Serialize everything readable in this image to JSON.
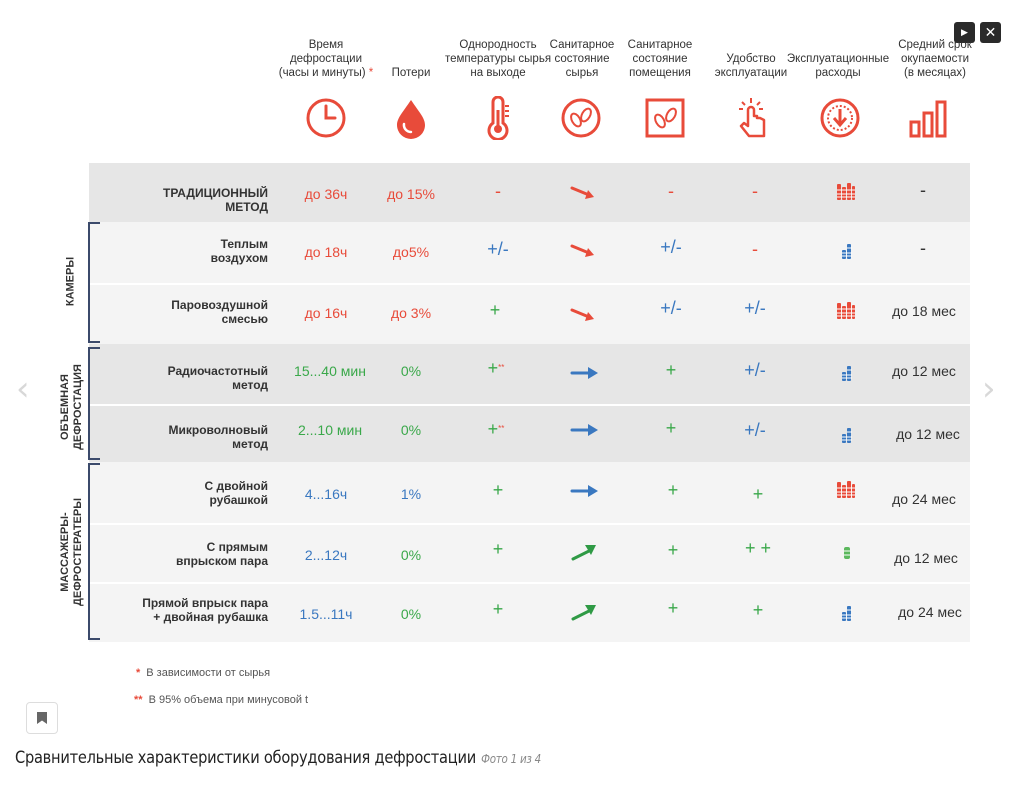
{
  "controls": {
    "play_glyph": "▶",
    "close_glyph": "✕"
  },
  "nav": {
    "prev_glyph": "‹",
    "next_glyph": "›"
  },
  "headers": [
    {
      "l1": "Время",
      "l2": "дефростации",
      "l3": "(часы и минуты)",
      "mark": "*",
      "icon": "clock-icon"
    },
    {
      "l1": "Потери",
      "l2": "",
      "l3": "",
      "mark": "",
      "icon": "drop-icon"
    },
    {
      "l1": "Однородность",
      "l2": "температуры сырья",
      "l3": "на выходе",
      "mark": "",
      "icon": "thermometer-icon"
    },
    {
      "l1": "Санитарное",
      "l2": "состояние",
      "l3": "сырья",
      "mark": "",
      "icon": "bacteria-icon"
    },
    {
      "l1": "Санитарное",
      "l2": "состояние",
      "l3": "помещения",
      "mark": "",
      "icon": "room-bacteria-icon"
    },
    {
      "l1": "Удобство",
      "l2": "эксплуатации",
      "l3": "",
      "mark": "",
      "icon": "hand-pointer-icon"
    },
    {
      "l1": "Эксплуатационные",
      "l2": "расходы",
      "l3": "",
      "mark": "",
      "icon": "coin-icon"
    },
    {
      "l1": "Средний срок",
      "l2": "окупаемости",
      "l3": "(в месяцах)",
      "mark": "",
      "icon": "bar-chart-icon"
    }
  ],
  "groups": {
    "cameras": "КАМЕРЫ",
    "volumetric_1": "ОБЪЕМНАЯ",
    "volumetric_2": "ДЕФРОСТАЦИЯ",
    "massagers_1": "МАССАЖЕРЫ-",
    "massagers_2": "ДЕФРОСТЕРАТЕРЫ"
  },
  "rows": [
    {
      "l1": "ТРАДИЦИОННЫЙ",
      "l2": "МЕТОД",
      "time": "до 36ч",
      "loss": "до 15%",
      "uniformity": "-",
      "sanitary_raw": "arrow-down-red",
      "sanitary_room": "-",
      "convenience": "-",
      "expenses": "high-red",
      "payback": "-"
    },
    {
      "l1": "Теплым",
      "l2": "воздухом",
      "time": "до 18ч",
      "loss": "до5%",
      "uniformity": "+/-",
      "sanitary_raw": "arrow-down-red",
      "sanitary_room": "+/-",
      "convenience": "-",
      "expenses": "low-blue",
      "payback": "-"
    },
    {
      "l1": "Паровоздушной",
      "l2": "смесью",
      "time": "до 16ч",
      "loss": "до 3%",
      "uniformity": "+",
      "sanitary_raw": "arrow-down-red",
      "sanitary_room": "+/-",
      "convenience": "+/-",
      "expenses": "high-red",
      "payback": "до 18 мес"
    },
    {
      "l1": "Радиочастотный",
      "l2": "метод",
      "time": "15...40 мин",
      "loss": "0%",
      "uniformity": "+",
      "uniformity_mark": "**",
      "sanitary_raw": "arrow-right-blue",
      "sanitary_room": "+",
      "convenience": "+/-",
      "expenses": "low-blue",
      "payback": "до 12 мес"
    },
    {
      "l1": "Микроволновый",
      "l2": "метод",
      "time": "2...10 мин",
      "loss": "0%",
      "uniformity": "+",
      "uniformity_mark": "**",
      "sanitary_raw": "arrow-right-blue",
      "sanitary_room": "+",
      "convenience": "+/-",
      "expenses": "low-blue",
      "payback": "до 12 мес"
    },
    {
      "l1": "С двойной",
      "l2": "рубашкой",
      "time": "4...16ч",
      "loss": "1%",
      "uniformity": "+",
      "sanitary_raw": "arrow-right-blue",
      "sanitary_room": "+",
      "convenience": "+",
      "expenses": "high-red",
      "payback": "до 24 мес"
    },
    {
      "l1": "С прямым",
      "l2": "впрыском пара",
      "time": "2...12ч",
      "loss": "0%",
      "uniformity": "+",
      "sanitary_raw": "arrow-up-green",
      "sanitary_room": "+",
      "convenience": "+ +",
      "expenses": "single-green",
      "payback": "до 12 мес"
    },
    {
      "l1": "Прямой впрыск пара",
      "l2": "+ двойная рубашка",
      "time": "1.5...11ч",
      "loss": "0%",
      "uniformity": "+",
      "sanitary_raw": "arrow-up-green",
      "sanitary_room": "+",
      "convenience": "+",
      "expenses": "low-blue",
      "payback": "до 24 мес"
    }
  ],
  "notes": [
    {
      "mark": "*",
      "text": "В зависимости от сырья"
    },
    {
      "mark": "**",
      "text": "В 95% объема при минусовой t"
    }
  ],
  "caption": {
    "text": "Сравнительные характеристики оборудования дефростации",
    "counter": "Фото 1 из 4"
  },
  "colors": {
    "red": "#e84b3a",
    "green": "#3aa84a",
    "blue": "#3a78c0",
    "navy": "#3b4a6b"
  }
}
